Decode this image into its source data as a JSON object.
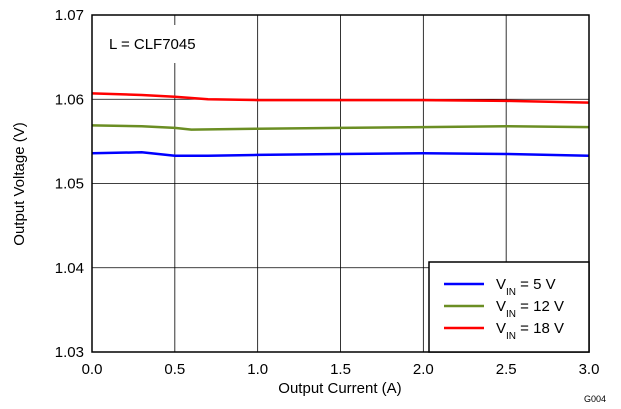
{
  "chart_data": {
    "type": "line",
    "xlabel": "Output Current (A)",
    "ylabel": "Output Voltage (V)",
    "xlim": [
      0,
      3
    ],
    "ylim": [
      1.03,
      1.07
    ],
    "xticks": [
      "0.0",
      "0.5",
      "1.0",
      "1.5",
      "2.0",
      "2.5",
      "3.0"
    ],
    "xtick_values": [
      0,
      0.5,
      1.0,
      1.5,
      2.0,
      2.5,
      3.0
    ],
    "yticks": [
      "1.03",
      "1.04",
      "1.05",
      "1.06",
      "1.07"
    ],
    "ytick_values": [
      1.03,
      1.04,
      1.05,
      1.06,
      1.07
    ],
    "grid": true,
    "legend_position": "bottom-right",
    "annotation": "L = CLF7045",
    "figure_code": "G004",
    "series": [
      {
        "name_main": "V",
        "name_sub": "IN",
        "name_rest": " = 5 V",
        "color": "#0000ff",
        "x": [
          0.0,
          0.3,
          0.5,
          0.7,
          1.0,
          1.5,
          2.0,
          2.5,
          3.0
        ],
        "y": [
          1.0536,
          1.0537,
          1.0533,
          1.0533,
          1.0534,
          1.0535,
          1.0536,
          1.0535,
          1.0533
        ]
      },
      {
        "name_main": "V",
        "name_sub": "IN",
        "name_rest": " = 12 V",
        "color": "#6b8e23",
        "x": [
          0.0,
          0.3,
          0.5,
          0.6,
          1.0,
          1.5,
          2.0,
          2.5,
          3.0
        ],
        "y": [
          1.0569,
          1.0568,
          1.0566,
          1.0564,
          1.0565,
          1.0566,
          1.0567,
          1.0568,
          1.0567
        ]
      },
      {
        "name_main": "V",
        "name_sub": "IN",
        "name_rest": " = 18 V",
        "color": "#ff0000",
        "x": [
          0.0,
          0.3,
          0.5,
          0.7,
          1.0,
          1.5,
          2.0,
          2.5,
          3.0
        ],
        "y": [
          1.0607,
          1.0605,
          1.0603,
          1.06,
          1.0599,
          1.0599,
          1.0599,
          1.0598,
          1.0596
        ]
      }
    ]
  }
}
